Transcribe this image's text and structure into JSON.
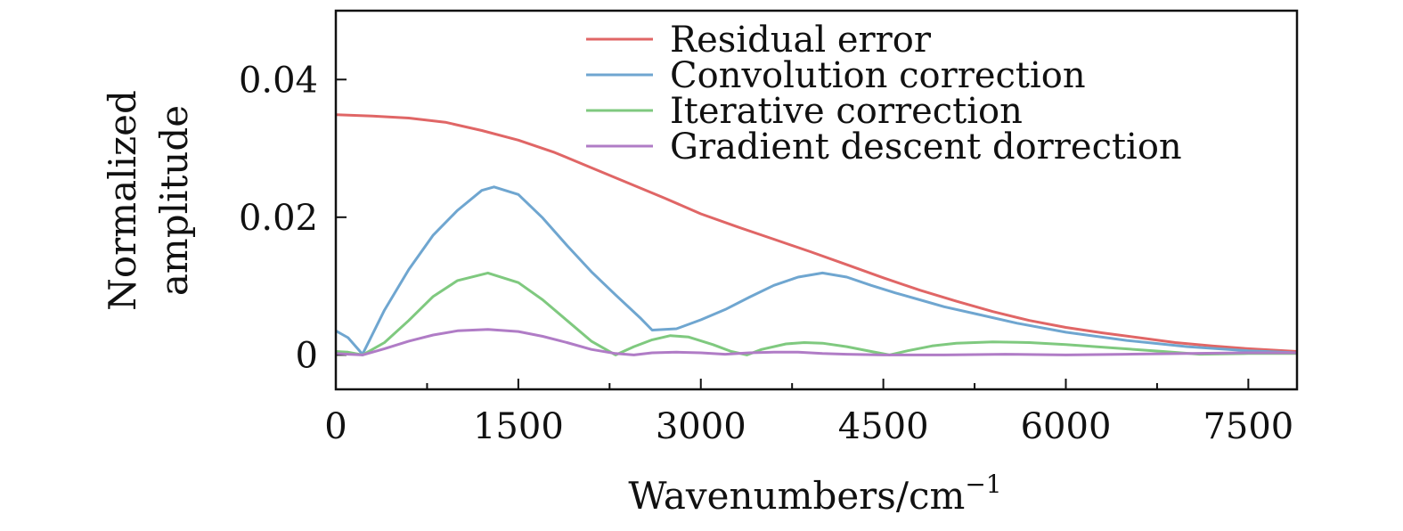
{
  "chart_data": {
    "type": "line",
    "title": "",
    "xlabel_main": "Wavenumbers/cm",
    "xlabel_sup": "−1",
    "ylabel_line1": "Normalized",
    "ylabel_line2": "amplitude",
    "xlim": [
      0,
      7900
    ],
    "ylim": [
      -0.005,
      0.05
    ],
    "x_ticks": [
      0,
      1500,
      3000,
      4500,
      6000,
      7500
    ],
    "x_tick_labels": [
      "0",
      "1500",
      "3000",
      "4500",
      "6000",
      "7500"
    ],
    "y_ticks": [
      0,
      0.02,
      0.04
    ],
    "y_tick_labels": [
      "0",
      "0.02",
      "0.04"
    ],
    "grid": false,
    "legend_position": "top-right",
    "series": [
      {
        "name": "Residual error",
        "color": "#e06666",
        "x": [
          0,
          300,
          600,
          900,
          1200,
          1500,
          1800,
          2100,
          2400,
          2700,
          3000,
          3300,
          3600,
          3900,
          4200,
          4500,
          4800,
          5100,
          5400,
          5700,
          6000,
          6300,
          6600,
          6900,
          7200,
          7500,
          7900
        ],
        "y": [
          0.0349,
          0.0347,
          0.0344,
          0.0338,
          0.0326,
          0.0312,
          0.0294,
          0.0272,
          0.025,
          0.0228,
          0.0205,
          0.0186,
          0.0168,
          0.015,
          0.0131,
          0.0112,
          0.0094,
          0.0078,
          0.0063,
          0.005,
          0.004,
          0.0032,
          0.0025,
          0.0018,
          0.0013,
          0.0009,
          0.0005
        ]
      },
      {
        "name": "Convolution correction",
        "color": "#6fa6d0",
        "x": [
          0,
          100,
          220,
          400,
          600,
          800,
          1000,
          1200,
          1300,
          1500,
          1700,
          1900,
          2100,
          2300,
          2500,
          2600,
          2800,
          3000,
          3200,
          3400,
          3600,
          3800,
          4000,
          4200,
          4400,
          4600,
          4800,
          5000,
          5300,
          5600,
          6000,
          6500,
          7000,
          7500,
          7900
        ],
        "y": [
          0.0035,
          0.0025,
          0.0001,
          0.0065,
          0.0124,
          0.0174,
          0.021,
          0.0239,
          0.0244,
          0.0233,
          0.0199,
          0.0159,
          0.0121,
          0.0087,
          0.0054,
          0.0036,
          0.0038,
          0.0051,
          0.0066,
          0.0084,
          0.0101,
          0.0113,
          0.0119,
          0.0113,
          0.0101,
          0.009,
          0.008,
          0.007,
          0.0058,
          0.0046,
          0.0033,
          0.0021,
          0.0012,
          0.0006,
          0.0003
        ]
      },
      {
        "name": "Iterative correction",
        "color": "#7fc97f",
        "x": [
          0,
          100,
          220,
          400,
          600,
          800,
          1000,
          1250,
          1500,
          1700,
          1900,
          2100,
          2300,
          2450,
          2600,
          2750,
          2900,
          3100,
          3250,
          3380,
          3500,
          3700,
          3850,
          4000,
          4200,
          4400,
          4550,
          4700,
          4900,
          5100,
          5400,
          5700,
          6000,
          6400,
          6800,
          7100,
          7500,
          7900
        ],
        "y": [
          0.0005,
          0.0004,
          0.0,
          0.0018,
          0.005,
          0.0085,
          0.0108,
          0.0119,
          0.0105,
          0.008,
          0.005,
          0.002,
          0.0,
          0.0012,
          0.0022,
          0.0028,
          0.0026,
          0.0015,
          0.0005,
          0.0,
          0.0008,
          0.0016,
          0.0018,
          0.0017,
          0.0012,
          0.0005,
          0.0,
          0.0006,
          0.0013,
          0.0017,
          0.0019,
          0.0018,
          0.0015,
          0.001,
          0.0005,
          0.0001,
          0.0002,
          0.0002
        ]
      },
      {
        "name": "Gradient descent dorrection",
        "color": "#b07cc6",
        "x": [
          0,
          100,
          220,
          400,
          600,
          800,
          1000,
          1250,
          1500,
          1700,
          1900,
          2100,
          2300,
          2450,
          2600,
          2800,
          3000,
          3200,
          3400,
          3600,
          3800,
          4000,
          4200,
          4500,
          5000,
          5500,
          6000,
          6500,
          7000,
          7500,
          7900
        ],
        "y": [
          0.0002,
          0.0001,
          0.0,
          0.0009,
          0.002,
          0.0029,
          0.0035,
          0.0037,
          0.0034,
          0.0027,
          0.0018,
          0.0008,
          0.0002,
          0.0,
          0.0003,
          0.0004,
          0.0003,
          0.0001,
          0.0003,
          0.0004,
          0.0004,
          0.0002,
          0.0001,
          0.0,
          0.0,
          0.0001,
          0.0,
          0.0001,
          0.0002,
          0.0003,
          0.0003
        ]
      }
    ]
  }
}
